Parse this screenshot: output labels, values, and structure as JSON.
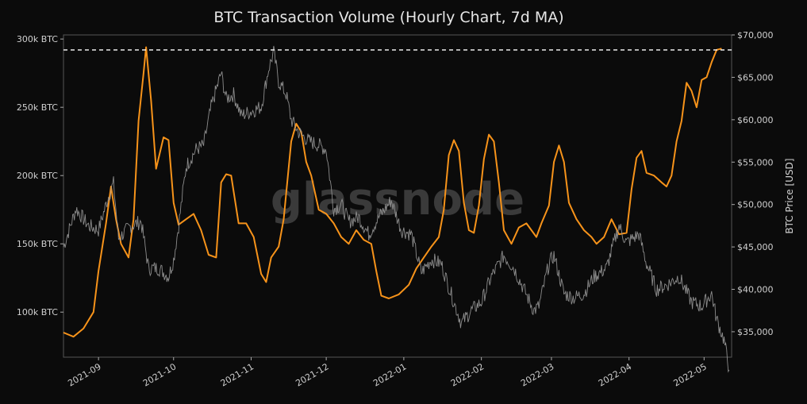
{
  "chart_data": {
    "type": "line",
    "title": "BTC Transaction Volume (Hourly Chart, 7d MA)",
    "watermark": "glassnode",
    "x_ticks": [
      "2021-09",
      "2021-10",
      "2021-11",
      "2021-12",
      "2022-01",
      "2022-02",
      "2022-03",
      "2022-04",
      "2022-05"
    ],
    "x_tick_dates": [
      "2021-09-01",
      "2021-10-01",
      "2021-11-01",
      "2021-12-01",
      "2022-01-01",
      "2022-02-01",
      "2022-03-01",
      "2022-04-01",
      "2022-05-01"
    ],
    "x_range": [
      "2021-08-18",
      "2022-05-12"
    ],
    "y_left": {
      "ticks": [
        100000,
        150000,
        200000,
        250000,
        300000
      ],
      "tick_labels": [
        "100k BTC",
        "150k BTC",
        "200k BTC",
        "250k BTC",
        "300k BTC"
      ],
      "range": [
        67000,
        303000
      ]
    },
    "y_right": {
      "label": "BTC Price [USD]",
      "ticks": [
        35000,
        40000,
        45000,
        50000,
        55000,
        60000,
        65000,
        70000
      ],
      "tick_labels": [
        "$35,000",
        "$40,000",
        "$45,000",
        "$50,000",
        "$55,000",
        "$60,000",
        "$65,000",
        "$70,000"
      ],
      "range": [
        32000,
        70000
      ]
    },
    "reference_line": {
      "axis": "left",
      "value": 292000,
      "style": "dashed",
      "color": "#ffffff"
    },
    "series": [
      {
        "axis": "left",
        "color": "#f7931a",
        "points": [
          [
            "2021-08-18",
            85000
          ],
          [
            "2021-08-22",
            82000
          ],
          [
            "2021-08-26",
            88000
          ],
          [
            "2021-08-30",
            100000
          ],
          [
            "2021-09-01",
            130000
          ],
          [
            "2021-09-04",
            165000
          ],
          [
            "2021-09-06",
            192000
          ],
          [
            "2021-09-08",
            168000
          ],
          [
            "2021-09-10",
            150000
          ],
          [
            "2021-09-13",
            140000
          ],
          [
            "2021-09-15",
            168000
          ],
          [
            "2021-09-17",
            240000
          ],
          [
            "2021-09-19",
            275000
          ],
          [
            "2021-09-20",
            294000
          ],
          [
            "2021-09-22",
            255000
          ],
          [
            "2021-09-24",
            205000
          ],
          [
            "2021-09-27",
            228000
          ],
          [
            "2021-09-29",
            226000
          ],
          [
            "2021-10-01",
            180000
          ],
          [
            "2021-10-03",
            164000
          ],
          [
            "2021-10-06",
            168000
          ],
          [
            "2021-10-09",
            172000
          ],
          [
            "2021-10-12",
            160000
          ],
          [
            "2021-10-15",
            142000
          ],
          [
            "2021-10-18",
            140000
          ],
          [
            "2021-10-20",
            195000
          ],
          [
            "2021-10-22",
            201000
          ],
          [
            "2021-10-24",
            200000
          ],
          [
            "2021-10-27",
            165000
          ],
          [
            "2021-10-30",
            165000
          ],
          [
            "2021-11-02",
            155000
          ],
          [
            "2021-11-05",
            128000
          ],
          [
            "2021-11-07",
            122000
          ],
          [
            "2021-11-09",
            140000
          ],
          [
            "2021-11-12",
            148000
          ],
          [
            "2021-11-14",
            168000
          ],
          [
            "2021-11-17",
            225000
          ],
          [
            "2021-11-19",
            238000
          ],
          [
            "2021-11-21",
            232000
          ],
          [
            "2021-11-23",
            210000
          ],
          [
            "2021-11-25",
            200000
          ],
          [
            "2021-11-28",
            175000
          ],
          [
            "2021-12-01",
            172000
          ],
          [
            "2021-12-04",
            165000
          ],
          [
            "2021-12-07",
            155000
          ],
          [
            "2021-12-10",
            150000
          ],
          [
            "2021-12-13",
            160000
          ],
          [
            "2021-12-16",
            153000
          ],
          [
            "2021-12-19",
            150000
          ],
          [
            "2021-12-21",
            130000
          ],
          [
            "2021-12-23",
            112000
          ],
          [
            "2021-12-26",
            110000
          ],
          [
            "2021-12-30",
            113000
          ],
          [
            "2022-01-03",
            120000
          ],
          [
            "2022-01-06",
            132000
          ],
          [
            "2022-01-09",
            140000
          ],
          [
            "2022-01-12",
            148000
          ],
          [
            "2022-01-15",
            155000
          ],
          [
            "2022-01-17",
            175000
          ],
          [
            "2022-01-19",
            215000
          ],
          [
            "2022-01-21",
            226000
          ],
          [
            "2022-01-23",
            218000
          ],
          [
            "2022-01-25",
            180000
          ],
          [
            "2022-01-27",
            160000
          ],
          [
            "2022-01-29",
            158000
          ],
          [
            "2022-01-31",
            178000
          ],
          [
            "2022-02-02",
            212000
          ],
          [
            "2022-02-04",
            230000
          ],
          [
            "2022-02-06",
            225000
          ],
          [
            "2022-02-08",
            195000
          ],
          [
            "2022-02-10",
            160000
          ],
          [
            "2022-02-13",
            150000
          ],
          [
            "2022-02-16",
            162000
          ],
          [
            "2022-02-19",
            165000
          ],
          [
            "2022-02-21",
            160000
          ],
          [
            "2022-02-23",
            155000
          ],
          [
            "2022-02-25",
            165000
          ],
          [
            "2022-02-28",
            178000
          ],
          [
            "2022-03-02",
            210000
          ],
          [
            "2022-03-04",
            222000
          ],
          [
            "2022-03-06",
            210000
          ],
          [
            "2022-03-08",
            180000
          ],
          [
            "2022-03-11",
            168000
          ],
          [
            "2022-03-14",
            160000
          ],
          [
            "2022-03-17",
            155000
          ],
          [
            "2022-03-19",
            150000
          ],
          [
            "2022-03-22",
            155000
          ],
          [
            "2022-03-25",
            168000
          ],
          [
            "2022-03-28",
            157000
          ],
          [
            "2022-03-31",
            158000
          ],
          [
            "2022-04-02",
            190000
          ],
          [
            "2022-04-04",
            213000
          ],
          [
            "2022-04-06",
            218000
          ],
          [
            "2022-04-08",
            202000
          ],
          [
            "2022-04-11",
            200000
          ],
          [
            "2022-04-14",
            195000
          ],
          [
            "2022-04-16",
            192000
          ],
          [
            "2022-04-18",
            200000
          ],
          [
            "2022-04-20",
            225000
          ],
          [
            "2022-04-22",
            240000
          ],
          [
            "2022-04-24",
            268000
          ],
          [
            "2022-04-26",
            262000
          ],
          [
            "2022-04-28",
            250000
          ],
          [
            "2022-04-30",
            270000
          ],
          [
            "2022-05-02",
            272000
          ],
          [
            "2022-05-04",
            283000
          ],
          [
            "2022-05-06",
            292000
          ],
          [
            "2022-05-08",
            293000
          ]
        ]
      },
      {
        "axis": "right",
        "color": "#9a9a9a",
        "points": [
          [
            "2021-08-18",
            45000
          ],
          [
            "2021-08-23",
            49500
          ],
          [
            "2021-08-28",
            47500
          ],
          [
            "2021-09-01",
            47000
          ],
          [
            "2021-09-05",
            51000
          ],
          [
            "2021-09-07",
            52500
          ],
          [
            "2021-09-09",
            46000
          ],
          [
            "2021-09-14",
            47500
          ],
          [
            "2021-09-18",
            48000
          ],
          [
            "2021-09-21",
            42500
          ],
          [
            "2021-09-25",
            42500
          ],
          [
            "2021-09-29",
            41500
          ],
          [
            "2021-10-01",
            43500
          ],
          [
            "2021-10-03",
            47500
          ],
          [
            "2021-10-06",
            54500
          ],
          [
            "2021-10-10",
            56500
          ],
          [
            "2021-10-13",
            57000
          ],
          [
            "2021-10-16",
            61500
          ],
          [
            "2021-10-20",
            65500
          ],
          [
            "2021-10-22",
            62500
          ],
          [
            "2021-10-25",
            63000
          ],
          [
            "2021-10-28",
            60500
          ],
          [
            "2021-11-01",
            61000
          ],
          [
            "2021-11-05",
            61500
          ],
          [
            "2021-11-08",
            66000
          ],
          [
            "2021-11-10",
            68000
          ],
          [
            "2021-11-12",
            64500
          ],
          [
            "2021-11-15",
            63000
          ],
          [
            "2021-11-17",
            60000
          ],
          [
            "2021-11-20",
            58500
          ],
          [
            "2021-11-24",
            57500
          ],
          [
            "2021-11-28",
            57000
          ],
          [
            "2021-12-01",
            56500
          ],
          [
            "2021-12-04",
            49500
          ],
          [
            "2021-12-07",
            50000
          ],
          [
            "2021-12-10",
            48000
          ],
          [
            "2021-12-14",
            48500
          ],
          [
            "2021-12-18",
            46500
          ],
          [
            "2021-12-22",
            48500
          ],
          [
            "2021-12-27",
            50500
          ],
          [
            "2021-12-31",
            47000
          ],
          [
            "2022-01-04",
            46500
          ],
          [
            "2022-01-08",
            42000
          ],
          [
            "2022-01-12",
            43500
          ],
          [
            "2022-01-16",
            43000
          ],
          [
            "2022-01-21",
            38500
          ],
          [
            "2022-01-24",
            36000
          ],
          [
            "2022-01-28",
            37500
          ],
          [
            "2022-02-01",
            38500
          ],
          [
            "2022-02-05",
            41500
          ],
          [
            "2022-02-10",
            44000
          ],
          [
            "2022-02-14",
            42500
          ],
          [
            "2022-02-18",
            40000
          ],
          [
            "2022-02-22",
            37500
          ],
          [
            "2022-02-24",
            38000
          ],
          [
            "2022-02-28",
            43000
          ],
          [
            "2022-03-02",
            44000
          ],
          [
            "2022-03-06",
            39500
          ],
          [
            "2022-03-10",
            39000
          ],
          [
            "2022-03-14",
            39500
          ],
          [
            "2022-03-18",
            41500
          ],
          [
            "2022-03-23",
            42500
          ],
          [
            "2022-03-28",
            47500
          ],
          [
            "2022-03-31",
            45500
          ],
          [
            "2022-04-05",
            46500
          ],
          [
            "2022-04-08",
            43000
          ],
          [
            "2022-04-12",
            40000
          ],
          [
            "2022-04-16",
            40500
          ],
          [
            "2022-04-21",
            41500
          ],
          [
            "2022-04-26",
            38500
          ],
          [
            "2022-04-30",
            38000
          ],
          [
            "2022-05-04",
            39500
          ],
          [
            "2022-05-06",
            36500
          ],
          [
            "2022-05-09",
            34000
          ],
          [
            "2022-05-11",
            30500
          ]
        ]
      }
    ]
  }
}
